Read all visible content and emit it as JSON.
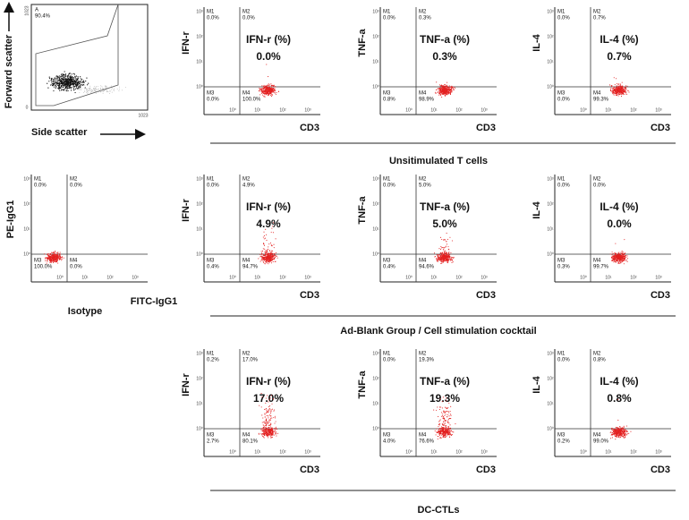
{
  "scatter_panel": {
    "y_label": "Forward scatter",
    "x_label": "Side scatter",
    "gate_label": "A",
    "gate_value": "90.4%",
    "y_top": "1023",
    "y_bottom": "0",
    "x_right": "1023"
  },
  "axis_ticks": [
    "10⁰",
    "10¹",
    "10²",
    "10³"
  ],
  "isotype": {
    "y_label": "PE-IgG1",
    "x_label": "FITC-IgG1",
    "caption": "Isotype",
    "quadrants": [
      {
        "name": "M1",
        "value": "0.0%"
      },
      {
        "name": "M2",
        "value": "0.0%"
      },
      {
        "name": "M3",
        "value": "100.0%"
      },
      {
        "name": "M4",
        "value": "0.0%"
      }
    ]
  },
  "groups": [
    {
      "caption": "Unsitimulated T cells",
      "panels": [
        {
          "y_label": "IFN-r",
          "x_label": "CD3",
          "title": "IFN-r (%)",
          "headline": "0.0%",
          "quadrants": [
            {
              "name": "M1",
              "value": "0.0%"
            },
            {
              "name": "M2",
              "value": "0.0%"
            },
            {
              "name": "M3",
              "value": "0.0%"
            },
            {
              "name": "M4",
              "value": "100.0%"
            }
          ]
        },
        {
          "y_label": "TNF-a",
          "x_label": "CD3",
          "title": "TNF-a (%)",
          "headline": "0.3%",
          "quadrants": [
            {
              "name": "M1",
              "value": "0.0%"
            },
            {
              "name": "M2",
              "value": "0.3%"
            },
            {
              "name": "M3",
              "value": "0.8%"
            },
            {
              "name": "M4",
              "value": "98.9%"
            }
          ]
        },
        {
          "y_label": "IL-4",
          "x_label": "CD3",
          "title": "IL-4 (%)",
          "headline": "0.7%",
          "quadrants": [
            {
              "name": "M1",
              "value": "0.0%"
            },
            {
              "name": "M2",
              "value": "0.7%"
            },
            {
              "name": "M3",
              "value": "0.0%"
            },
            {
              "name": "M4",
              "value": "99.3%"
            }
          ]
        }
      ]
    },
    {
      "caption": "Ad-Blank Group / Cell stimulation cocktail",
      "panels": [
        {
          "y_label": "IFN-r",
          "x_label": "CD3",
          "title": "IFN-r (%)",
          "headline": "4.9%",
          "quadrants": [
            {
              "name": "M1",
              "value": "0.0%"
            },
            {
              "name": "M2",
              "value": "4.9%"
            },
            {
              "name": "M3",
              "value": "0.4%"
            },
            {
              "name": "M4",
              "value": "94.7%"
            }
          ]
        },
        {
          "y_label": "TNF-a",
          "x_label": "CD3",
          "title": "TNF-a (%)",
          "headline": "5.0%",
          "quadrants": [
            {
              "name": "M1",
              "value": "0.0%"
            },
            {
              "name": "M2",
              "value": "5.0%"
            },
            {
              "name": "M3",
              "value": "0.4%"
            },
            {
              "name": "M4",
              "value": "94.6%"
            }
          ]
        },
        {
          "y_label": "IL-4",
          "x_label": "CD3",
          "title": "IL-4 (%)",
          "headline": "0.0%",
          "quadrants": [
            {
              "name": "M1",
              "value": "0.0%"
            },
            {
              "name": "M2",
              "value": "0.0%"
            },
            {
              "name": "M3",
              "value": "0.3%"
            },
            {
              "name": "M4",
              "value": "99.7%"
            }
          ]
        }
      ]
    },
    {
      "caption": "DC-CTLs",
      "panels": [
        {
          "y_label": "IFN-r",
          "x_label": "CD3",
          "title": "IFN-r (%)",
          "headline": "17.0%",
          "quadrants": [
            {
              "name": "M1",
              "value": "0.2%"
            },
            {
              "name": "M2",
              "value": "17.0%"
            },
            {
              "name": "M3",
              "value": "2.7%"
            },
            {
              "name": "M4",
              "value": "80.1%"
            }
          ]
        },
        {
          "y_label": "TNF-a",
          "x_label": "CD3",
          "title": "TNF-a (%)",
          "headline": "19.3%",
          "quadrants": [
            {
              "name": "M1",
              "value": "0.0%"
            },
            {
              "name": "M2",
              "value": "19.3%"
            },
            {
              "name": "M3",
              "value": "4.0%"
            },
            {
              "name": "M4",
              "value": "76.6%"
            }
          ]
        },
        {
          "y_label": "IL-4",
          "x_label": "CD3",
          "title": "IL-4 (%)",
          "headline": "0.8%",
          "quadrants": [
            {
              "name": "M1",
              "value": "0.0%"
            },
            {
              "name": "M2",
              "value": "0.8%"
            },
            {
              "name": "M3",
              "value": "0.2%"
            },
            {
              "name": "M4",
              "value": "99.0%"
            }
          ]
        }
      ]
    }
  ]
}
